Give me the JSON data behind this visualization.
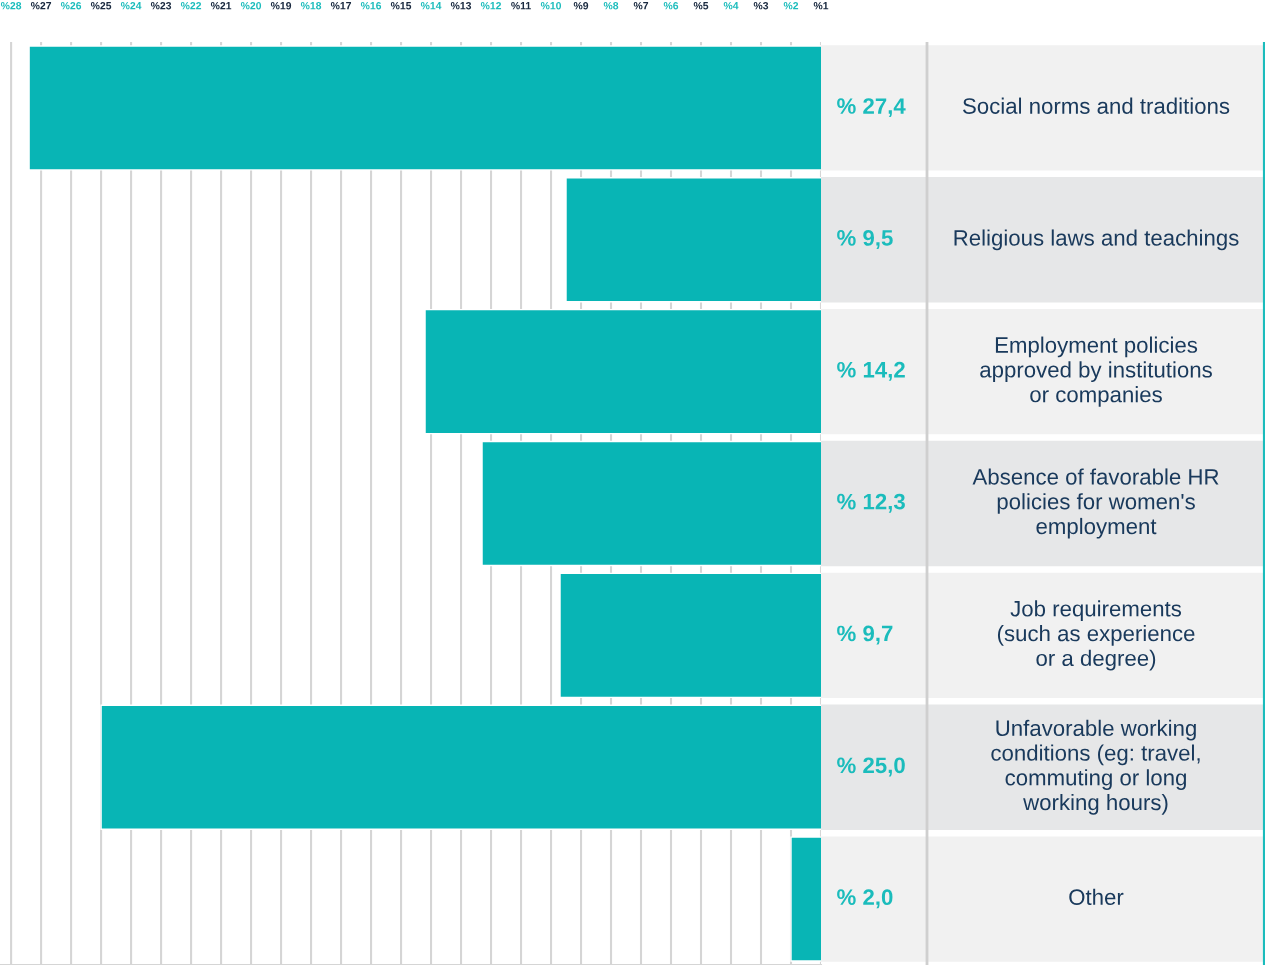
{
  "chart_data": {
    "type": "bar",
    "orientation": "horizontal",
    "categories": [
      "Social norms and traditions",
      "Religious laws and teachings",
      "Employment policies\napproved by institutions\nor companies",
      "Absence of favorable HR\npolicies for women's\nemployment",
      "Job requirements\n(such as experience\nor a degree)",
      "Unfavorable working\nconditions (eg: travel,\ncommuting or long\nworking hours)",
      "Other"
    ],
    "values": [
      27.4,
      9.5,
      14.2,
      12.3,
      9.7,
      25.0,
      2.0
    ],
    "value_labels": [
      "% 27,4",
      "% 9,5",
      "% 14,2",
      "% 12,3",
      "% 9,7",
      "% 25,0",
      "% 2,0"
    ],
    "color": "#08b5b5",
    "xlim": [
      28.37,
      1
    ],
    "xticks": [
      {
        "value": 28,
        "label": "%28"
      },
      {
        "value": 27,
        "label": "%27"
      },
      {
        "value": 26,
        "label": "%26"
      },
      {
        "value": 25,
        "label": "%25"
      },
      {
        "value": 24,
        "label": "%24"
      },
      {
        "value": 23,
        "label": "%23"
      },
      {
        "value": 22,
        "label": "%22"
      },
      {
        "value": 21,
        "label": "%21"
      },
      {
        "value": 20,
        "label": "%20"
      },
      {
        "value": 19,
        "label": "%19"
      },
      {
        "value": 18,
        "label": "%18"
      },
      {
        "value": 17,
        "label": "%17"
      },
      {
        "value": 16,
        "label": "%16"
      },
      {
        "value": 15,
        "label": "%15"
      },
      {
        "value": 14,
        "label": "%14"
      },
      {
        "value": 13,
        "label": "%13"
      },
      {
        "value": 12,
        "label": "%12"
      },
      {
        "value": 11,
        "label": "%11"
      },
      {
        "value": 10,
        "label": "%10"
      },
      {
        "value": 9,
        "label": "%9"
      },
      {
        "value": 8,
        "label": "%8"
      },
      {
        "value": 7,
        "label": "%7"
      },
      {
        "value": 6,
        "label": "%6"
      },
      {
        "value": 5,
        "label": "%5"
      },
      {
        "value": 4,
        "label": "%4"
      },
      {
        "value": 3,
        "label": "%3"
      },
      {
        "value": 2,
        "label": "%2"
      },
      {
        "value": 1,
        "label": "%1"
      }
    ],
    "grid": "x"
  }
}
